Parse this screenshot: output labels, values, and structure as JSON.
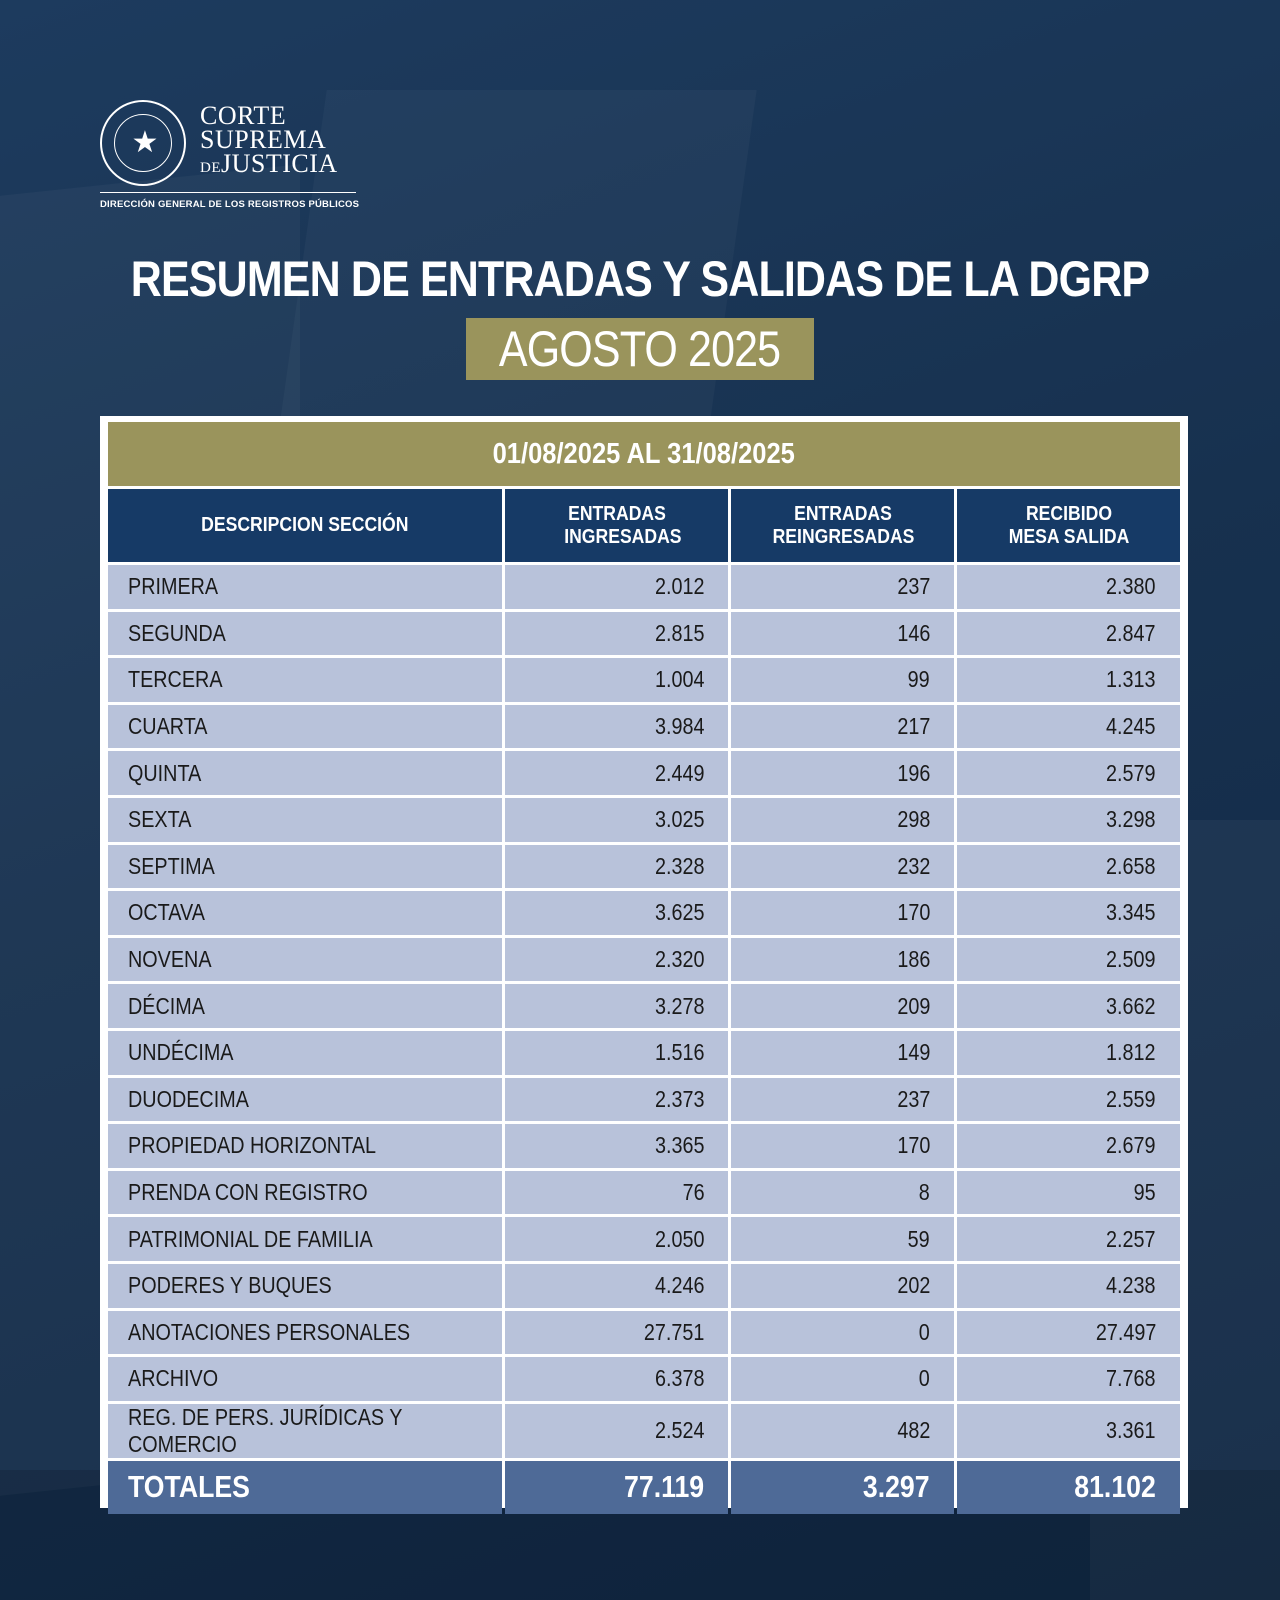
{
  "logo": {
    "line1": "CORTE",
    "line2": "SUPREMA",
    "line3_small": "DE",
    "line3": "JUSTICIA",
    "subtitle": "DIRECCIÓN GENERAL DE LOS REGISTROS PÚBLICOS"
  },
  "title": "RESUMEN DE ENTRADAS Y SALIDAS DE LA DGRP",
  "subtitle": "AGOSTO 2025",
  "table": {
    "period": "01/08/2025 AL 31/08/2025",
    "headers": [
      "DESCRIPCION SECCIÓN",
      "ENTRADAS INGRESADAS",
      "ENTRADAS REINGRESADAS",
      "RECIBIDO MESA SALIDA"
    ],
    "rows": [
      [
        "PRIMERA",
        "2.012",
        "237",
        "2.380"
      ],
      [
        "SEGUNDA",
        "2.815",
        "146",
        "2.847"
      ],
      [
        "TERCERA",
        "1.004",
        "99",
        "1.313"
      ],
      [
        "CUARTA",
        "3.984",
        "217",
        "4.245"
      ],
      [
        "QUINTA",
        "2.449",
        "196",
        "2.579"
      ],
      [
        "SEXTA",
        "3.025",
        "298",
        "3.298"
      ],
      [
        "SEPTIMA",
        "2.328",
        "232",
        "2.658"
      ],
      [
        "OCTAVA",
        "3.625",
        "170",
        "3.345"
      ],
      [
        "NOVENA",
        "2.320",
        "186",
        "2.509"
      ],
      [
        "DÉCIMA",
        "3.278",
        "209",
        "3.662"
      ],
      [
        "UNDÉCIMA",
        "1.516",
        "149",
        "1.812"
      ],
      [
        "DUODECIMA",
        "2.373",
        "237",
        "2.559"
      ],
      [
        "PROPIEDAD HORIZONTAL",
        "3.365",
        "170",
        "2.679"
      ],
      [
        "PRENDA CON REGISTRO",
        "76",
        "8",
        "95"
      ],
      [
        "PATRIMONIAL DE FAMILIA",
        "2.050",
        "59",
        "2.257"
      ],
      [
        "PODERES Y BUQUES",
        "4.246",
        "202",
        "4.238"
      ],
      [
        "ANOTACIONES PERSONALES",
        "27.751",
        "0",
        "27.497"
      ],
      [
        "ARCHIVO",
        "6.378",
        "0",
        "7.768"
      ],
      [
        "REG. DE PERS. JURÍDICAS Y COMERCIO",
        "2.524",
        "482",
        "3.361"
      ]
    ],
    "totals": [
      "TOTALES",
      "77.119",
      "3.297",
      "81.102"
    ]
  }
}
